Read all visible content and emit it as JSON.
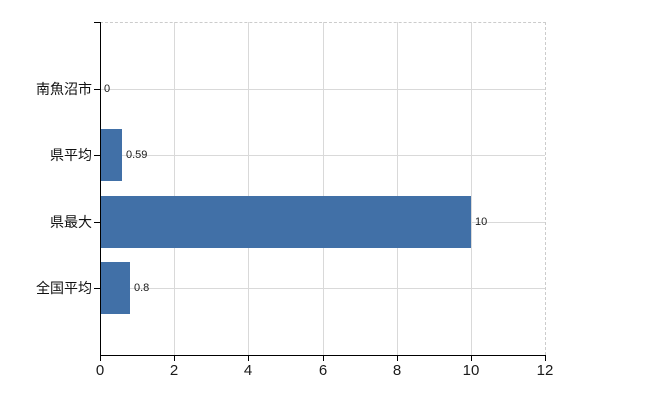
{
  "chart": {
    "background": "#ffffff"
  },
  "chart_data": {
    "type": "bar",
    "orientation": "horizontal",
    "title": "",
    "xlabel": "",
    "ylabel": "",
    "categories": [
      "南魚沼市",
      "県平均",
      "県最大",
      "全国平均"
    ],
    "values": [
      0,
      0.59,
      10,
      0.8
    ],
    "value_labels": [
      "0",
      "0.59",
      "10",
      "0.8"
    ],
    "x_ticks": [
      "0",
      "2",
      "4",
      "6",
      "8",
      "10",
      "12"
    ],
    "x_tick_values": [
      0,
      2,
      4,
      6,
      8,
      10,
      12
    ],
    "xlim": [
      0,
      12
    ],
    "legend": "none",
    "grid": true,
    "bar_color": "#4170a7",
    "grid_color": "#d9d9d9",
    "axis_color": "#000000",
    "plot_border_color": "#cccccc",
    "plot_border_style": "dashed",
    "label_color": "#1a1a1a"
  }
}
